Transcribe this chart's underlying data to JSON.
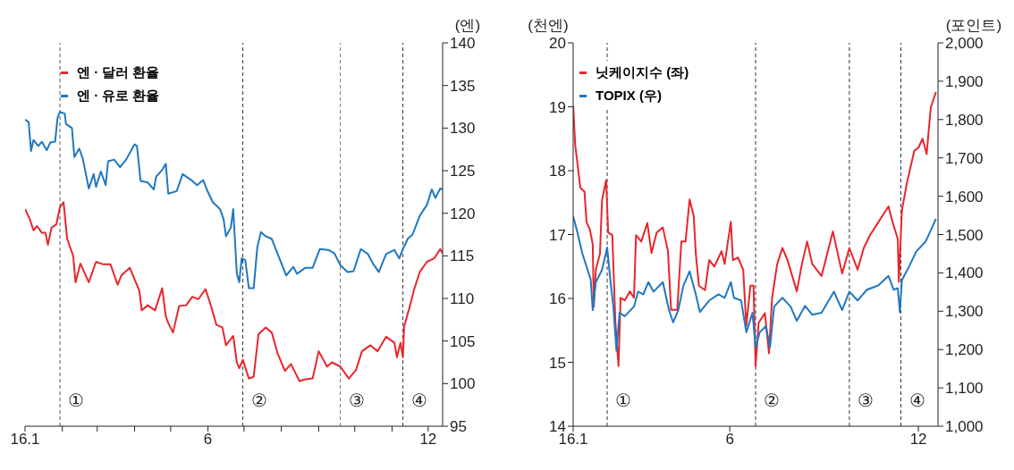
{
  "chart_data": [
    {
      "type": "line",
      "xlim": [
        "--01-01",
        "--12-13"
      ],
      "xticks": [
        {
          "value": "--01-01",
          "label": "16.1"
        },
        {
          "value": "--02-01",
          "label": null
        },
        {
          "value": "--03-01",
          "label": null
        },
        {
          "value": "--04-01",
          "label": null
        },
        {
          "value": "--05-01",
          "label": null
        },
        {
          "value": "--06-01",
          "label": "6"
        },
        {
          "value": "--07-01",
          "label": null
        },
        {
          "value": "--08-01",
          "label": null
        },
        {
          "value": "--09-01",
          "label": null
        },
        {
          "value": "--10-01",
          "label": null
        },
        {
          "value": "--11-01",
          "label": null
        },
        {
          "value": "--12-01",
          "label": "12"
        }
      ],
      "y2label": "(엔)",
      "y2lim": [
        95,
        140
      ],
      "y2ticks": [
        95,
        100,
        105,
        110,
        115,
        120,
        125,
        130,
        135,
        140
      ],
      "legend": "top left",
      "marker": "none",
      "line_style": "solid",
      "ref_lines": [
        {
          "axis": "x",
          "value": "--01-30",
          "label": "①",
          "color": "#555555",
          "line_style": "dashed"
        },
        {
          "axis": "x",
          "value": "--06-30",
          "label": "②",
          "color": "#333333",
          "line_style": "dashed"
        },
        {
          "axis": "x",
          "value": "--09-19",
          "label": "③",
          "color": "#777777",
          "line_style": "dashed"
        },
        {
          "axis": "x",
          "value": "--11-10",
          "label": "④",
          "color": "#333333",
          "line_style": "dashed"
        }
      ],
      "series": [
        {
          "name": "엔 · 달러 환율",
          "color": "#e8262c",
          "axis": "y2",
          "x": [
            "--01-01",
            "--01-05",
            "--01-08",
            "--01-11",
            "--01-15",
            "--01-18",
            "--01-20",
            "--01-23",
            "--01-27",
            "--01-30",
            "--02-02",
            "--02-05",
            "--02-10",
            "--02-12",
            "--02-16",
            "--02-23",
            "--02-29",
            "--03-06",
            "--03-12",
            "--03-18",
            "--03-21",
            "--03-28",
            "--04-05",
            "--04-07",
            "--04-12",
            "--04-18",
            "--04-24",
            "--04-27",
            "--04-29",
            "--05-03",
            "--05-08",
            "--05-14",
            "--05-19",
            "--05-24",
            "--05-30",
            "--06-04",
            "--06-08",
            "--06-13",
            "--06-16",
            "--06-22",
            "--06-25",
            "--06-27",
            "--06-30",
            "--07-05",
            "--07-09",
            "--07-13",
            "--07-19",
            "--07-24",
            "--07-29",
            "--08-04",
            "--08-09",
            "--08-16",
            "--08-21",
            "--08-27",
            "--09-01",
            "--09-08",
            "--09-12",
            "--09-19",
            "--09-26",
            "--10-02",
            "--10-07",
            "--10-14",
            "--10-20",
            "--10-27",
            "--11-03",
            "--11-05",
            "--11-08",
            "--11-10",
            "--11-11",
            "--11-16",
            "--11-19",
            "--11-24",
            "--11-30",
            "--12-06",
            "--12-11",
            "--12-13"
          ],
          "values": [
            120.5,
            119.3,
            118.0,
            118.5,
            117.7,
            117.7,
            116.3,
            118.3,
            118.7,
            120.7,
            121.3,
            117.0,
            115.0,
            111.9,
            114.1,
            111.9,
            114.3,
            114.0,
            114.0,
            111.6,
            112.7,
            113.6,
            110.9,
            108.6,
            109.2,
            108.6,
            111.2,
            107.9,
            107.1,
            106.0,
            109.1,
            109.2,
            110.2,
            109.9,
            111.1,
            108.9,
            106.9,
            106.6,
            104.5,
            105.6,
            102.5,
            101.8,
            102.8,
            100.6,
            100.8,
            105.8,
            106.6,
            106.0,
            103.5,
            101.5,
            102.3,
            100.3,
            100.5,
            100.6,
            103.8,
            102.0,
            102.5,
            102.0,
            100.6,
            101.6,
            103.8,
            104.5,
            103.8,
            105.5,
            104.8,
            103.1,
            104.8,
            103.1,
            106.7,
            109.2,
            110.9,
            113.1,
            114.3,
            114.7,
            115.8,
            115.3
          ]
        },
        {
          "name": "엔 · 유로 환율",
          "color": "#1f78c1",
          "axis": "y2",
          "x": [
            "--01-01",
            "--01-04",
            "--01-06",
            "--01-08",
            "--01-12",
            "--01-15",
            "--01-19",
            "--01-22",
            "--01-26",
            "--01-28",
            "--01-30",
            "--02-03",
            "--02-04",
            "--02-09",
            "--02-11",
            "--02-15",
            "--02-18",
            "--02-23",
            "--02-27",
            "--02-29",
            "--03-04",
            "--03-08",
            "--03-10",
            "--03-15",
            "--03-20",
            "--03-25",
            "--04-01",
            "--04-03",
            "--04-06",
            "--04-12",
            "--04-17",
            "--04-19",
            "--04-24",
            "--04-27",
            "--04-29",
            "--05-06",
            "--05-11",
            "--05-19",
            "--05-23",
            "--05-28",
            "--05-31",
            "--06-05",
            "--06-11",
            "--06-14",
            "--06-16",
            "--06-20",
            "--06-22",
            "--06-25",
            "--06-27",
            "--06-29",
            "--07-02",
            "--07-05",
            "--07-09",
            "--07-12",
            "--07-15",
            "--07-19",
            "--07-24",
            "--07-29",
            "--08-05",
            "--08-11",
            "--08-14",
            "--08-21",
            "--08-27",
            "--09-02",
            "--09-09",
            "--09-14",
            "--09-19",
            "--09-25",
            "--09-30",
            "--10-06",
            "--10-12",
            "--10-16",
            "--10-21",
            "--10-27",
            "--11-03",
            "--11-07",
            "--11-10",
            "--11-14",
            "--11-18",
            "--11-24",
            "--11-30",
            "--12-04",
            "--12-07",
            "--12-11",
            "--12-13"
          ],
          "values": [
            131.0,
            130.7,
            127.3,
            128.6,
            127.9,
            128.4,
            127.4,
            128.3,
            128.4,
            131.2,
            131.9,
            131.7,
            130.5,
            130.0,
            126.6,
            127.6,
            126.4,
            122.9,
            124.6,
            123.1,
            124.9,
            123.3,
            126.1,
            126.3,
            125.4,
            126.3,
            128.1,
            127.9,
            123.8,
            123.6,
            122.8,
            124.3,
            125.1,
            125.8,
            122.3,
            122.6,
            124.6,
            123.8,
            123.3,
            123.9,
            122.8,
            121.3,
            120.5,
            119.3,
            117.3,
            118.3,
            120.5,
            112.9,
            111.9,
            114.7,
            114.5,
            111.2,
            111.2,
            116.0,
            117.8,
            117.3,
            117.0,
            115.2,
            112.7,
            113.7,
            112.9,
            113.6,
            113.6,
            115.8,
            115.7,
            115.3,
            113.9,
            113.1,
            113.2,
            115.8,
            115.2,
            114.1,
            113.1,
            115.2,
            115.7,
            114.7,
            115.8,
            117.0,
            117.5,
            119.7,
            121.0,
            122.8,
            121.8,
            122.9,
            122.8
          ]
        }
      ]
    },
    {
      "type": "line",
      "xlim": [
        "--01-01",
        "--12-20"
      ],
      "xticks": [
        {
          "value": "--01-01",
          "label": "16.1"
        },
        {
          "value": "--06-01",
          "label": "6"
        },
        {
          "value": "--12-01",
          "label": "12"
        }
      ],
      "ylabel": "(천엔)",
      "ylim": [
        14,
        20
      ],
      "yticks": [
        14,
        15,
        16,
        17,
        18,
        19,
        20
      ],
      "y2label": "(포인트)",
      "y2lim": [
        1000,
        2000
      ],
      "y2ticks": [
        {
          "value": 1000,
          "label": "1,000"
        },
        {
          "value": 1100,
          "label": "1,100"
        },
        {
          "value": 1200,
          "label": "1,200"
        },
        {
          "value": 1300,
          "label": "1,300"
        },
        {
          "value": 1400,
          "label": "1,400"
        },
        {
          "value": 1500,
          "label": "1,500"
        },
        {
          "value": 1600,
          "label": "1,600"
        },
        {
          "value": 1700,
          "label": "1,700"
        },
        {
          "value": 1800,
          "label": "1,800"
        },
        {
          "value": 1900,
          "label": "1,900"
        },
        {
          "value": 2000,
          "label": "2,000"
        }
      ],
      "legend": "top left",
      "marker": "none",
      "line_style": "solid",
      "ref_lines": [
        {
          "axis": "x",
          "value": "--02-03",
          "label": "①",
          "color": "#333333",
          "line_style": "dashed"
        },
        {
          "axis": "x",
          "value": "--06-26",
          "label": "②",
          "color": "#333333",
          "line_style": "dashed"
        },
        {
          "axis": "x",
          "value": "--09-25",
          "label": "③",
          "color": "#333333",
          "line_style": "dashed"
        },
        {
          "axis": "x",
          "value": "--11-14",
          "label": "④",
          "color": "#333333",
          "line_style": "dashed"
        }
      ],
      "series": [
        {
          "name": "닛케이지수 (좌)",
          "color": "#e8262c",
          "x": [
            "--01-01",
            "--01-03",
            "--01-08",
            "--01-12",
            "--01-14",
            "--01-17",
            "--01-20",
            "--01-21",
            "--01-23",
            "--01-27",
            "--01-29",
            "--02-02",
            "--02-04",
            "--02-08",
            "--02-11",
            "--02-14",
            "--02-16",
            "--02-20",
            "--02-25",
            "--02-29",
            "--03-02",
            "--03-07",
            "--03-13",
            "--03-17",
            "--03-22",
            "--03-28",
            "--04-02",
            "--04-05",
            "--04-11",
            "--04-15",
            "--04-19",
            "--04-23",
            "--04-27",
            "--04-29",
            "--05-02",
            "--05-08",
            "--05-12",
            "--05-17",
            "--05-24",
            "--05-27",
            "--06-02",
            "--06-04",
            "--06-09",
            "--06-14",
            "--06-17",
            "--06-21",
            "--06-24",
            "--06-26",
            "--06-29",
            "--07-05",
            "--07-09",
            "--07-12",
            "--07-17",
            "--07-22",
            "--07-27",
            "--08-05",
            "--08-10",
            "--08-15",
            "--08-20",
            "--08-29",
            "--09-09",
            "--09-18",
            "--09-25",
            "--10-03",
            "--10-09",
            "--10-15",
            "--10-23",
            "--11-02",
            "--11-06",
            "--11-11",
            "--11-12",
            "--11-15",
            "--11-20",
            "--11-27",
            "--12-01",
            "--12-05",
            "--12-09",
            "--12-13",
            "--12-18"
          ],
          "values": [
            19.01,
            18.4,
            17.73,
            17.67,
            17.19,
            17.09,
            16.85,
            15.87,
            16.45,
            16.7,
            17.54,
            17.85,
            17.03,
            16.99,
            15.62,
            14.94,
            16.01,
            15.97,
            16.11,
            16.01,
            16.99,
            16.89,
            17.18,
            16.71,
            17.03,
            17.11,
            16.74,
            15.82,
            15.82,
            16.89,
            16.89,
            17.55,
            17.29,
            16.7,
            16.2,
            16.13,
            16.6,
            16.5,
            16.74,
            16.54,
            17.2,
            16.6,
            16.64,
            16.45,
            15.57,
            16.2,
            16.2,
            14.94,
            15.62,
            15.77,
            15.14,
            16.01,
            16.54,
            16.79,
            16.6,
            16.11,
            16.54,
            16.89,
            16.54,
            16.35,
            17.05,
            16.39,
            16.79,
            16.45,
            16.79,
            16.99,
            17.19,
            17.44,
            17.19,
            16.93,
            16.26,
            17.38,
            17.82,
            18.31,
            18.36,
            18.5,
            18.26,
            18.99,
            19.23
          ]
        },
        {
          "name": "TOPIX (우)",
          "color": "#1f78c1",
          "axis": "y2",
          "x": [
            "--01-01",
            "--01-05",
            "--01-10",
            "--01-18",
            "--01-20",
            "--01-23",
            "--01-29",
            "--02-03",
            "--02-06",
            "--02-09",
            "--02-12",
            "--02-15",
            "--02-20",
            "--02-29",
            "--03-04",
            "--03-09",
            "--03-14",
            "--03-19",
            "--03-28",
            "--04-03",
            "--04-07",
            "--04-12",
            "--04-17",
            "--04-23",
            "--04-29",
            "--05-03",
            "--05-12",
            "--05-21",
            "--05-27",
            "--06-02",
            "--06-05",
            "--06-12",
            "--06-17",
            "--06-23",
            "--06-26",
            "--06-30",
            "--07-06",
            "--07-10",
            "--07-14",
            "--07-22",
            "--07-30",
            "--08-05",
            "--08-13",
            "--08-20",
            "--08-29",
            "--09-10",
            "--09-18",
            "--09-25",
            "--10-03",
            "--10-12",
            "--10-23",
            "--11-02",
            "--11-07",
            "--11-11",
            "--11-13",
            "--11-15",
            "--11-22",
            "--11-29",
            "--12-08",
            "--12-12",
            "--12-18"
          ],
          "values": [
            1548,
            1507,
            1450,
            1383,
            1303,
            1376,
            1408,
            1466,
            1383,
            1312,
            1197,
            1296,
            1287,
            1312,
            1351,
            1344,
            1376,
            1351,
            1376,
            1303,
            1271,
            1303,
            1367,
            1404,
            1344,
            1298,
            1328,
            1344,
            1335,
            1376,
            1335,
            1328,
            1245,
            1296,
            1206,
            1245,
            1261,
            1206,
            1312,
            1335,
            1312,
            1275,
            1314,
            1291,
            1296,
            1351,
            1303,
            1351,
            1328,
            1356,
            1367,
            1392,
            1356,
            1360,
            1298,
            1381,
            1417,
            1456,
            1482,
            1505,
            1541
          ]
        }
      ]
    }
  ]
}
